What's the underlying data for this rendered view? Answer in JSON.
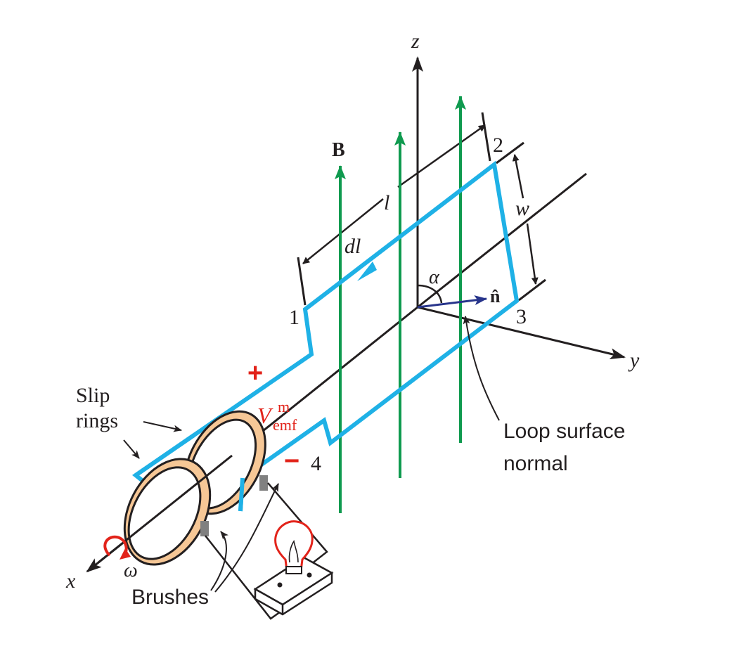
{
  "labels": {
    "z_axis": "z",
    "y_axis": "y",
    "x_axis": "x",
    "b_field": "B",
    "length": "l",
    "dl": "dl",
    "width": "w",
    "alpha": "α",
    "n_hat": "n̂",
    "corner_1": "1",
    "corner_2": "2",
    "corner_3": "3",
    "corner_4": "4",
    "plus": "+",
    "minus": "−",
    "v_main": "V",
    "v_sup": "m",
    "v_sub": "emf",
    "slip_rings_line1": "Slip",
    "slip_rings_line2": "rings",
    "loop_normal_line1": "Loop surface",
    "loop_normal_line2": "normal",
    "brushes": "Brushes",
    "omega": "ω"
  },
  "colors": {
    "wire": "#1fb1e6",
    "field": "#0f9a4f",
    "axis": "#231f20",
    "normal": "#27348b",
    "polarity": "#e2231a",
    "ring_fill": "#f6c796",
    "brush": "#808080",
    "bulb": "#e2231a"
  }
}
